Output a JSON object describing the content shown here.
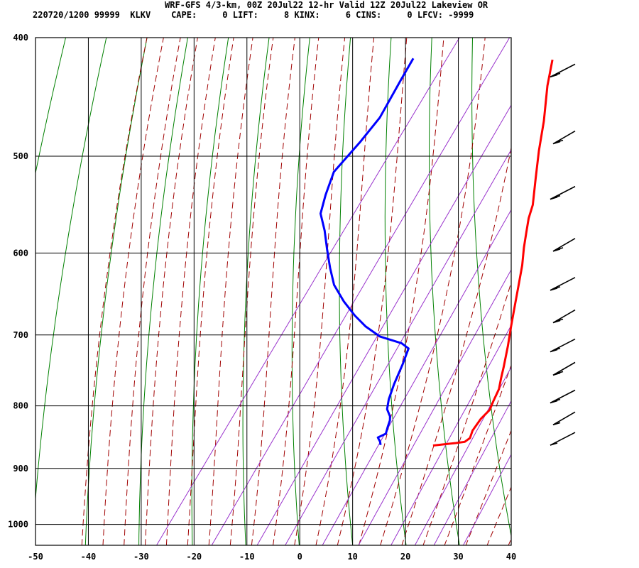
{
  "header": {
    "title": "WRF-GFS 4/3-km, 00Z 20Jul22 12-hr Valid 12Z 20Jul22 Lakeview OR",
    "info": "220720/1200 99999  KLKV    CAPE:     0 LIFT:     8 KINX:     6 CINS:     0 LFCV: -9999"
  },
  "chart_data": {
    "type": "line",
    "title": "WRF-GFS 4/3-km, 00Z 20Jul22 12-hr Valid 12Z 20Jul22 Lakeview OR",
    "xlabel": "",
    "ylabel": "",
    "x_ticks": [
      "-50",
      "-40",
      "-30",
      "-20",
      "-10",
      "0",
      "10",
      "20",
      "30",
      "40"
    ],
    "p_ticks": [
      "400",
      "500",
      "600",
      "700",
      "800",
      "900",
      "1000"
    ],
    "xlim": [
      -50,
      40
    ],
    "plim": [
      400,
      1040
    ],
    "grid": true,
    "series": [
      {
        "color": "#ff0000",
        "points": [
          [
            -16.5,
            417
          ],
          [
            -14,
            438
          ],
          [
            -10,
            468
          ],
          [
            -7,
            495
          ],
          [
            -4,
            521
          ],
          [
            -1,
            548
          ],
          [
            0,
            562
          ],
          [
            1.5,
            578
          ],
          [
            3,
            594
          ],
          [
            5,
            614
          ],
          [
            7,
            638
          ],
          [
            9,
            663
          ],
          [
            11,
            689
          ],
          [
            13,
            715
          ],
          [
            15,
            744
          ],
          [
            16,
            760
          ],
          [
            17,
            775
          ],
          [
            17.5,
            792
          ],
          [
            18,
            806
          ],
          [
            17.5,
            820
          ],
          [
            17.5,
            838
          ],
          [
            18,
            850
          ],
          [
            17.5,
            856
          ],
          [
            16,
            858
          ],
          [
            12,
            862
          ]
        ]
      },
      {
        "color": "#0000ff",
        "points": [
          [
            -43,
            416
          ],
          [
            -42.5,
            433
          ],
          [
            -41.5,
            465
          ],
          [
            -42,
            487
          ],
          [
            -43,
            515
          ],
          [
            -41.5,
            538
          ],
          [
            -40,
            557
          ],
          [
            -37,
            575
          ],
          [
            -34,
            596
          ],
          [
            -31,
            617
          ],
          [
            -28,
            637
          ],
          [
            -24,
            657
          ],
          [
            -20,
            675
          ],
          [
            -16.5,
            689
          ],
          [
            -12.5,
            702
          ],
          [
            -7.5,
            711
          ],
          [
            -5.5,
            718
          ],
          [
            -4.5,
            740
          ],
          [
            -3.5,
            768
          ],
          [
            -2.5,
            790
          ],
          [
            -1.5,
            805
          ],
          [
            0,
            816
          ],
          [
            0.5,
            822
          ],
          [
            1,
            833
          ],
          [
            1.5,
            843
          ],
          [
            0.5,
            849
          ],
          [
            1.5,
            856
          ],
          [
            2,
            861
          ]
        ]
      }
    ],
    "wind_barbs": [
      {
        "pressure": 425,
        "speed_kt": 20
      },
      {
        "pressure": 482,
        "speed_kt": 20
      },
      {
        "pressure": 535,
        "speed_kt": 15
      },
      {
        "pressure": 590,
        "speed_kt": 15
      },
      {
        "pressure": 635,
        "speed_kt": 15
      },
      {
        "pressure": 675,
        "speed_kt": 15
      },
      {
        "pressure": 713,
        "speed_kt": 15
      },
      {
        "pressure": 745,
        "speed_kt": 15
      },
      {
        "pressure": 785,
        "speed_kt": 15
      },
      {
        "pressure": 818,
        "speed_kt": 10
      },
      {
        "pressure": 850,
        "speed_kt": 10
      }
    ],
    "colors": {
      "dry_adiabat": "#008000",
      "moist_adiabat": "#a00000",
      "mixing_ratio": "#9932cc",
      "temperature": "#ff0000",
      "dewpoint": "#0000ff",
      "barb": "#000000"
    }
  }
}
